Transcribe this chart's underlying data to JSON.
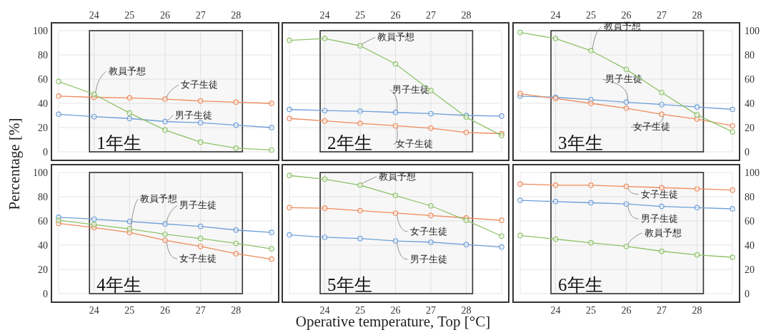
{
  "chart_data": [
    {
      "type": "line",
      "title": "1年生",
      "ylabel": "Percentage [%]",
      "x": [
        23,
        24,
        25,
        26,
        27,
        28,
        29
      ],
      "xlim": [
        23,
        29
      ],
      "xticks": [
        24,
        25,
        26,
        27,
        28
      ],
      "ylim": [
        0,
        100
      ],
      "yticks": [
        0,
        20,
        40,
        60,
        80,
        100
      ],
      "grid": true,
      "marker": "circle",
      "line_style": "solid",
      "bands": [
        {
          "axis": "x",
          "from": 23.87,
          "to": 28.18
        }
      ],
      "series": [
        {
          "name": "男子生徒",
          "color": "#6f9fd8",
          "values": [
            31,
            29,
            27.5,
            25,
            24,
            22,
            20
          ]
        },
        {
          "name": "女子生徒",
          "color": "#ed8b5c",
          "values": [
            46,
            45,
            44.5,
            43.5,
            42,
            41,
            40
          ]
        },
        {
          "name": "教員予想",
          "color": "#8fc26a",
          "values": [
            58,
            47.5,
            32,
            18,
            8,
            3,
            1.5
          ]
        }
      ]
    },
    {
      "type": "line",
      "title": "2年生",
      "x": [
        23,
        24,
        25,
        26,
        27,
        28,
        29
      ],
      "xlim": [
        23,
        29
      ],
      "xticks": [
        24,
        25,
        26,
        27,
        28
      ],
      "ylim": [
        0,
        100
      ],
      "yticks": [
        0,
        20,
        40,
        60,
        80,
        100
      ],
      "grid": true,
      "marker": "circle",
      "line_style": "solid",
      "tick_labels": "x",
      "bands": [
        {
          "axis": "x",
          "from": 23.87,
          "to": 28.18
        }
      ],
      "series": [
        {
          "name": "男子生徒",
          "color": "#6f9fd8",
          "values": [
            35,
            34,
            33.5,
            32.5,
            31.5,
            30,
            29.5
          ]
        },
        {
          "name": "女子生徒",
          "color": "#ed8b5c",
          "values": [
            27.5,
            25.5,
            23.5,
            21.5,
            19.5,
            16,
            15
          ]
        },
        {
          "name": "教員予想",
          "color": "#8fc26a",
          "values": [
            92,
            93.5,
            87.5,
            72.5,
            50.5,
            28.5,
            13.5
          ]
        }
      ]
    },
    {
      "type": "line",
      "title": "3年生",
      "x": [
        23,
        24,
        25,
        26,
        27,
        28,
        29
      ],
      "xlim": [
        23,
        29
      ],
      "xticks": [
        24,
        25,
        26,
        27,
        28
      ],
      "ylim": [
        0,
        100
      ],
      "yticks": [
        0,
        20,
        40,
        60,
        80,
        100
      ],
      "grid": true,
      "marker": "circle",
      "line_style": "solid",
      "bands": [
        {
          "axis": "x",
          "from": 23.87,
          "to": 28.18
        }
      ],
      "series": [
        {
          "name": "男子生徒",
          "color": "#6f9fd8",
          "values": [
            46,
            45,
            43,
            41,
            39,
            37,
            35
          ]
        },
        {
          "name": "女子生徒",
          "color": "#ed8b5c",
          "values": [
            48,
            44,
            40,
            36,
            31,
            27,
            21.5
          ]
        },
        {
          "name": "教員予想",
          "color": "#8fc26a",
          "values": [
            98.5,
            93.5,
            83.5,
            68,
            49,
            30.5,
            16.5
          ]
        }
      ]
    },
    {
      "type": "line",
      "title": "4年生",
      "x": [
        23,
        24,
        25,
        26,
        27,
        28,
        29
      ],
      "xlim": [
        23,
        29
      ],
      "xticks": [
        24,
        25,
        26,
        27,
        28
      ],
      "ylim": [
        0,
        100
      ],
      "yticks": [
        0,
        20,
        40,
        60,
        80,
        100
      ],
      "grid": true,
      "marker": "circle",
      "line_style": "solid",
      "bands": [
        {
          "axis": "x",
          "from": 23.87,
          "to": 28.18
        }
      ],
      "series": [
        {
          "name": "男子生徒",
          "color": "#6f9fd8",
          "values": [
            63,
            61.5,
            59.5,
            57.5,
            55.5,
            52.5,
            50.5
          ]
        },
        {
          "name": "女子生徒",
          "color": "#ed8b5c",
          "values": [
            58,
            54.5,
            50.5,
            44,
            39,
            33,
            28.5
          ]
        },
        {
          "name": "教員予想",
          "color": "#8fc26a",
          "values": [
            60.5,
            57,
            53.5,
            49,
            45.5,
            41.5,
            37
          ]
        }
      ]
    },
    {
      "type": "line",
      "title": "5年生",
      "xlabel": "Operative temperature, Top [°C]",
      "x": [
        23,
        24,
        25,
        26,
        27,
        28,
        29
      ],
      "xlim": [
        23,
        29
      ],
      "xticks": [
        24,
        25,
        26,
        27,
        28
      ],
      "ylim": [
        0,
        100
      ],
      "yticks": [
        0,
        20,
        40,
        60,
        80,
        100
      ],
      "grid": true,
      "marker": "circle",
      "line_style": "solid",
      "tick_labels": "x",
      "bands": [
        {
          "axis": "x",
          "from": 23.87,
          "to": 28.18
        }
      ],
      "series": [
        {
          "name": "男子生徒",
          "color": "#6f9fd8",
          "values": [
            48.5,
            46.5,
            45.5,
            43.5,
            42.5,
            40.5,
            38.5
          ]
        },
        {
          "name": "女子生徒",
          "color": "#ed8b5c",
          "values": [
            71,
            70.5,
            68.5,
            66.5,
            64.5,
            62.5,
            60.5
          ]
        },
        {
          "name": "教員予想",
          "color": "#8fc26a",
          "values": [
            97.5,
            94.5,
            89.5,
            81,
            72.5,
            60.5,
            47.5
          ]
        }
      ]
    },
    {
      "type": "line",
      "title": "6年生",
      "x": [
        23,
        24,
        25,
        26,
        27,
        28,
        29
      ],
      "xlim": [
        23,
        29
      ],
      "xticks": [
        24,
        25,
        26,
        27,
        28
      ],
      "ylim": [
        0,
        100
      ],
      "yticks": [
        0,
        20,
        40,
        60,
        80,
        100
      ],
      "grid": true,
      "marker": "circle",
      "line_style": "solid",
      "bands": [
        {
          "axis": "x",
          "from": 23.87,
          "to": 28.18
        }
      ],
      "series": [
        {
          "name": "男子生徒",
          "color": "#6f9fd8",
          "values": [
            77,
            76,
            75,
            74,
            72,
            71,
            70
          ]
        },
        {
          "name": "女子生徒",
          "color": "#ed8b5c",
          "values": [
            90.5,
            89.5,
            89.5,
            88.5,
            87.5,
            86.5,
            85.5
          ]
        },
        {
          "name": "教員予想",
          "color": "#8fc26a",
          "values": [
            48,
            45,
            42,
            39,
            35,
            32,
            30
          ]
        }
      ]
    }
  ]
}
